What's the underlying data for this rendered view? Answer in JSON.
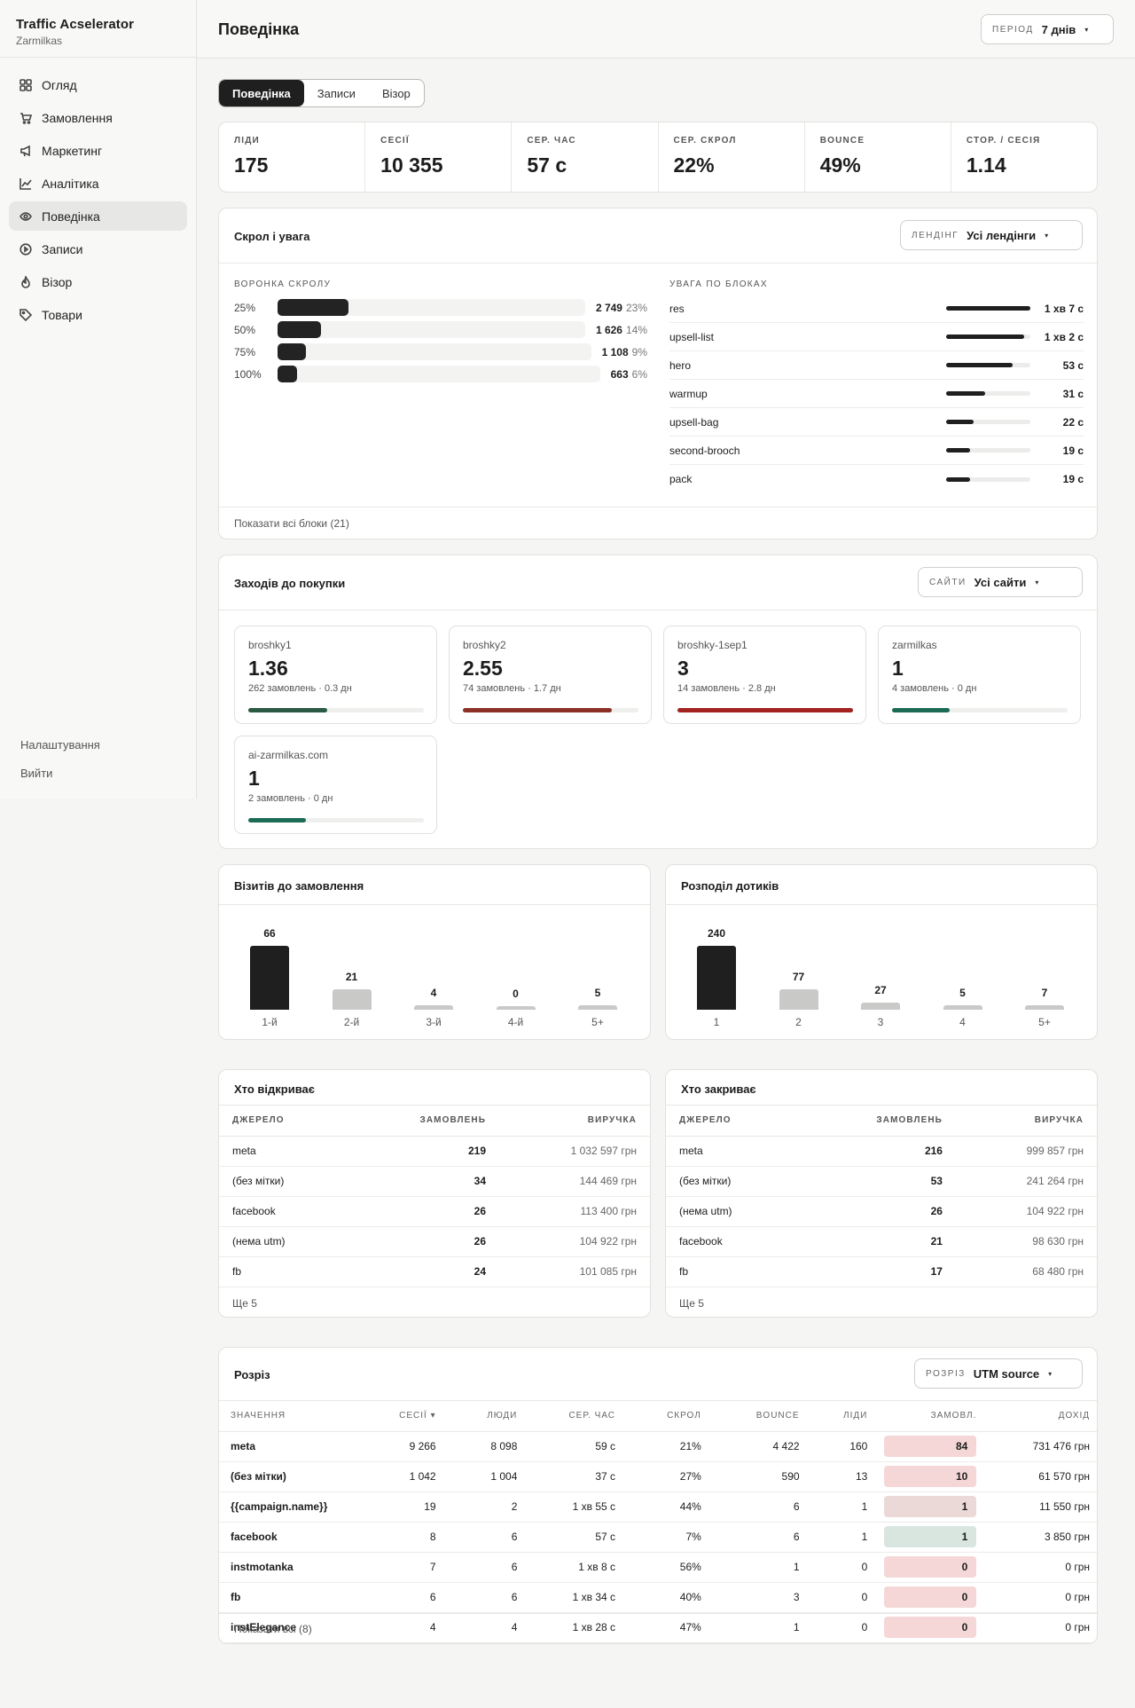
{
  "app": {
    "title": "Traffic Acselerator",
    "account": "Zarmilkas"
  },
  "sidebar": {
    "items": [
      {
        "label": "Огляд",
        "icon": "grid-icon",
        "active": false
      },
      {
        "label": "Замовлення",
        "icon": "cart-icon",
        "active": false
      },
      {
        "label": "Маркетинг",
        "icon": "megaphone-icon",
        "active": false
      },
      {
        "label": "Аналітика",
        "icon": "chart-icon",
        "active": false
      },
      {
        "label": "Поведінка",
        "icon": "eye-icon",
        "active": true
      },
      {
        "label": "Записи",
        "icon": "play-circle-icon",
        "active": false
      },
      {
        "label": "Візор",
        "icon": "flame-icon",
        "active": false
      },
      {
        "label": "Товари",
        "icon": "tag-icon",
        "active": false
      }
    ],
    "settings": "Налаштування",
    "logout": "Вийти"
  },
  "header": {
    "title": "Поведінка",
    "period_label": "ПЕРІОД",
    "period_value": "7 днів"
  },
  "tabs": [
    {
      "label": "Поведінка",
      "active": true
    },
    {
      "label": "Записи",
      "active": false
    },
    {
      "label": "Візор",
      "active": false
    }
  ],
  "kpis": [
    {
      "label": "ЛІДИ",
      "value": "175"
    },
    {
      "label": "СЕСІЇ",
      "value": "10 355"
    },
    {
      "label": "СЕР. ЧАС",
      "value": "57 с"
    },
    {
      "label": "СЕР. СКРОЛ",
      "value": "22%"
    },
    {
      "label": "BOUNCE",
      "value": "49%"
    },
    {
      "label": "СТОР. / СЕСІЯ",
      "value": "1.14"
    }
  ],
  "scroll": {
    "title": "Скрол і увага",
    "filter_label": "ЛЕНДІНГ",
    "filter_value": "Усі лендінги",
    "funnel_title": "ВОРОНКА СКРОЛУ",
    "funnel": [
      {
        "depth": "25%",
        "count": "2 749",
        "share": "23%",
        "fraction": 0.23
      },
      {
        "depth": "50%",
        "count": "1 626",
        "share": "14%",
        "fraction": 0.14
      },
      {
        "depth": "75%",
        "count": "1 108",
        "share": "9%",
        "fraction": 0.09
      },
      {
        "depth": "100%",
        "count": "663",
        "share": "6%",
        "fraction": 0.06
      }
    ],
    "attention_title": "УВАГА ПО БЛОКАХ",
    "attention": [
      {
        "block": "res",
        "time": "1 хв 7 с",
        "fraction": 1.0
      },
      {
        "block": "upsell-list",
        "time": "1 хв 2 с",
        "fraction": 0.93
      },
      {
        "block": "hero",
        "time": "53 с",
        "fraction": 0.79
      },
      {
        "block": "warmup",
        "time": "31 с",
        "fraction": 0.46
      },
      {
        "block": "upsell-bag",
        "time": "22 с",
        "fraction": 0.33
      },
      {
        "block": "second-brooch",
        "time": "19 с",
        "fraction": 0.28
      },
      {
        "block": "pack",
        "time": "19 с",
        "fraction": 0.28
      }
    ],
    "show_all": "Показати всі блоки (21)"
  },
  "touches": {
    "title": "Заходів до покупки",
    "filter_label": "САЙТИ",
    "filter_value": "Усі сайти",
    "sites": [
      {
        "name": "broshky1",
        "value": "1.36",
        "meta": "262 замовлень · 0.3 дн",
        "fraction": 0.45,
        "color": "#2a5a44"
      },
      {
        "name": "broshky2",
        "value": "2.55",
        "meta": "74 замовлень · 1.7 дн",
        "fraction": 0.85,
        "color": "#8d3026"
      },
      {
        "name": "broshky-1sep1",
        "value": "3",
        "meta": "14 замовлень · 2.8 дн",
        "fraction": 1.0,
        "color": "#a2231f"
      },
      {
        "name": "zarmilkas",
        "value": "1",
        "meta": "4 замовлень · 0 дн",
        "fraction": 0.33,
        "color": "#1b6b55"
      },
      {
        "name": "ai-zarmilkas.com",
        "value": "1",
        "meta": "2 замовлень · 0 дн",
        "fraction": 0.33,
        "color": "#1b6b55"
      }
    ]
  },
  "visits_chart": {
    "title": "Візитів до замовлення",
    "chart_data": {
      "type": "bar",
      "categories": [
        "1-й",
        "2-й",
        "3-й",
        "4-й",
        "5+"
      ],
      "values": [
        66,
        21,
        4,
        0,
        5
      ],
      "highlight_color": "#1f1f1f",
      "muted_color": "#c9c9c7"
    }
  },
  "touch_chart": {
    "title": "Розподіл дотиків",
    "chart_data": {
      "type": "bar",
      "categories": [
        "1",
        "2",
        "3",
        "4",
        "5+"
      ],
      "values": [
        240,
        77,
        27,
        5,
        7
      ],
      "highlight_color": "#1f1f1f",
      "muted_color": "#c9c9c7"
    }
  },
  "openers": {
    "title": "Хто відкриває",
    "columns": [
      "ДЖЕРЕЛО",
      "ЗАМОВЛЕНЬ",
      "ВИРУЧКА"
    ],
    "rows": [
      {
        "source": "meta",
        "orders": "219",
        "revenue": "1 032 597 грн"
      },
      {
        "source": "(без мітки)",
        "orders": "34",
        "revenue": "144 469 грн"
      },
      {
        "source": "facebook",
        "orders": "26",
        "revenue": "113 400 грн"
      },
      {
        "source": "(нема utm)",
        "orders": "26",
        "revenue": "104 922 грн"
      },
      {
        "source": "fb",
        "orders": "24",
        "revenue": "101 085 грн"
      }
    ],
    "more": "Ще 5"
  },
  "closers": {
    "title": "Хто закриває",
    "columns": [
      "ДЖЕРЕЛО",
      "ЗАМОВЛЕНЬ",
      "ВИРУЧКА"
    ],
    "rows": [
      {
        "source": "meta",
        "orders": "216",
        "revenue": "999 857 грн"
      },
      {
        "source": "(без мітки)",
        "orders": "53",
        "revenue": "241 264 грн"
      },
      {
        "source": "(нема utm)",
        "orders": "26",
        "revenue": "104 922 грн"
      },
      {
        "source": "facebook",
        "orders": "21",
        "revenue": "98 630 грн"
      },
      {
        "source": "fb",
        "orders": "17",
        "revenue": "68 480 грн"
      }
    ],
    "more": "Ще 5"
  },
  "breakdown": {
    "title": "Розріз",
    "filter_label": "РОЗРІЗ",
    "filter_value": "UTM source",
    "columns": [
      "ЗНАЧЕННЯ",
      "СЕСІЇ ▾",
      "ЛЮДИ",
      "СЕР. ЧАС",
      "СКРОЛ",
      "BOUNCE",
      "ЛІДИ",
      "ЗАМОВЛ.",
      "ДОХІД"
    ],
    "rows": [
      {
        "value": "meta",
        "sessions": "9 266",
        "people": "8 098",
        "avg_time": "59 с",
        "scroll": "21%",
        "bounce": "4 422",
        "leads": "160",
        "orders": "84",
        "orders_bg": "#f4d7d6",
        "revenue": "731 476 грн"
      },
      {
        "value": "(без мітки)",
        "sessions": "1 042",
        "people": "1 004",
        "avg_time": "37 с",
        "scroll": "27%",
        "bounce": "590",
        "leads": "13",
        "orders": "10",
        "orders_bg": "#f4d7d6",
        "revenue": "61 570 грн"
      },
      {
        "value": "{{campaign.name}}",
        "sessions": "19",
        "people": "2",
        "avg_time": "1 хв 55 с",
        "scroll": "44%",
        "bounce": "6",
        "leads": "1",
        "orders": "1",
        "orders_bg": "#ead9d7",
        "revenue": "11 550 грн"
      },
      {
        "value": "facebook",
        "sessions": "8",
        "people": "6",
        "avg_time": "57 с",
        "scroll": "7%",
        "bounce": "6",
        "leads": "1",
        "orders": "1",
        "orders_bg": "#d8e6df",
        "revenue": "3 850 грн"
      },
      {
        "value": "instmotanka",
        "sessions": "7",
        "people": "6",
        "avg_time": "1 хв 8 с",
        "scroll": "56%",
        "bounce": "1",
        "leads": "0",
        "orders": "0",
        "orders_bg": "#f4d7d6",
        "revenue": "0 грн"
      },
      {
        "value": "fb",
        "sessions": "6",
        "people": "6",
        "avg_time": "1 хв 34 с",
        "scroll": "40%",
        "bounce": "3",
        "leads": "0",
        "orders": "0",
        "orders_bg": "#f4d7d6",
        "revenue": "0 грн"
      },
      {
        "value": "instElegance",
        "sessions": "4",
        "people": "4",
        "avg_time": "1 хв 28 с",
        "scroll": "47%",
        "bounce": "1",
        "leads": "0",
        "orders": "0",
        "orders_bg": "#f4d7d6",
        "revenue": "0 грн"
      }
    ],
    "show_all": "Показати всі (8)"
  }
}
